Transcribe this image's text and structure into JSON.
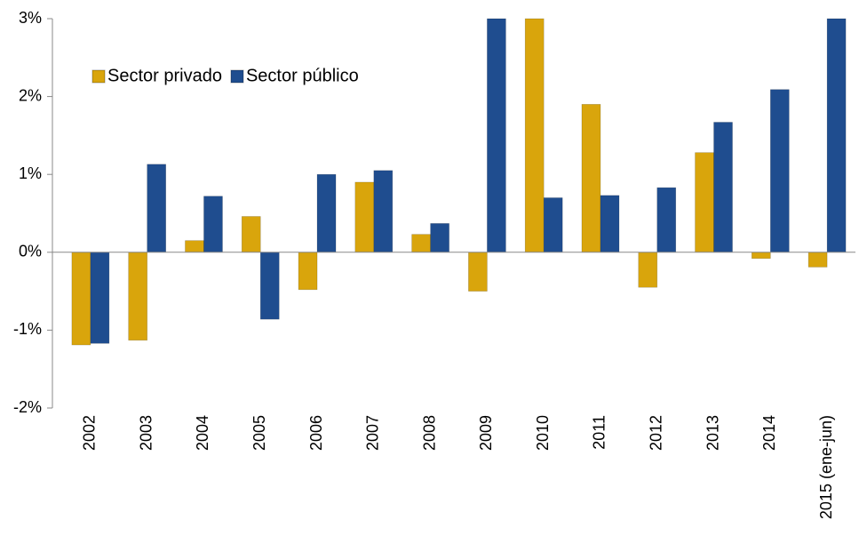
{
  "chart_data": {
    "type": "bar",
    "categories": [
      "2002",
      "2003",
      "2004",
      "2005",
      "2006",
      "2007",
      "2008",
      "2009",
      "2010",
      "2011",
      "2012",
      "2013",
      "2014",
      "2015 (ene-jun)"
    ],
    "series": [
      {
        "name": "Sector privado",
        "color": "#d9a50c",
        "values": [
          -1.19,
          -1.13,
          0.15,
          0.46,
          -0.48,
          0.9,
          0.23,
          -0.5,
          3,
          1.9,
          -0.45,
          1.28,
          -0.08,
          -0.19
        ]
      },
      {
        "name": "Sector público",
        "color": "#1f4d8f",
        "values": [
          -1.17,
          1.13,
          0.72,
          -0.86,
          1.0,
          1.05,
          0.37,
          3,
          0.7,
          0.73,
          0.83,
          1.67,
          2.09,
          3
        ]
      }
    ],
    "ylim": [
      -2,
      3
    ],
    "yticks": [
      {
        "value": -2,
        "label": "-2%"
      },
      {
        "value": -1,
        "label": "-1%"
      },
      {
        "value": 0,
        "label": "0%"
      },
      {
        "value": 1,
        "label": "1%"
      },
      {
        "value": 2,
        "label": "2%"
      },
      {
        "value": 3,
        "label": "3%"
      }
    ],
    "grid": false,
    "legend": "top-left"
  }
}
